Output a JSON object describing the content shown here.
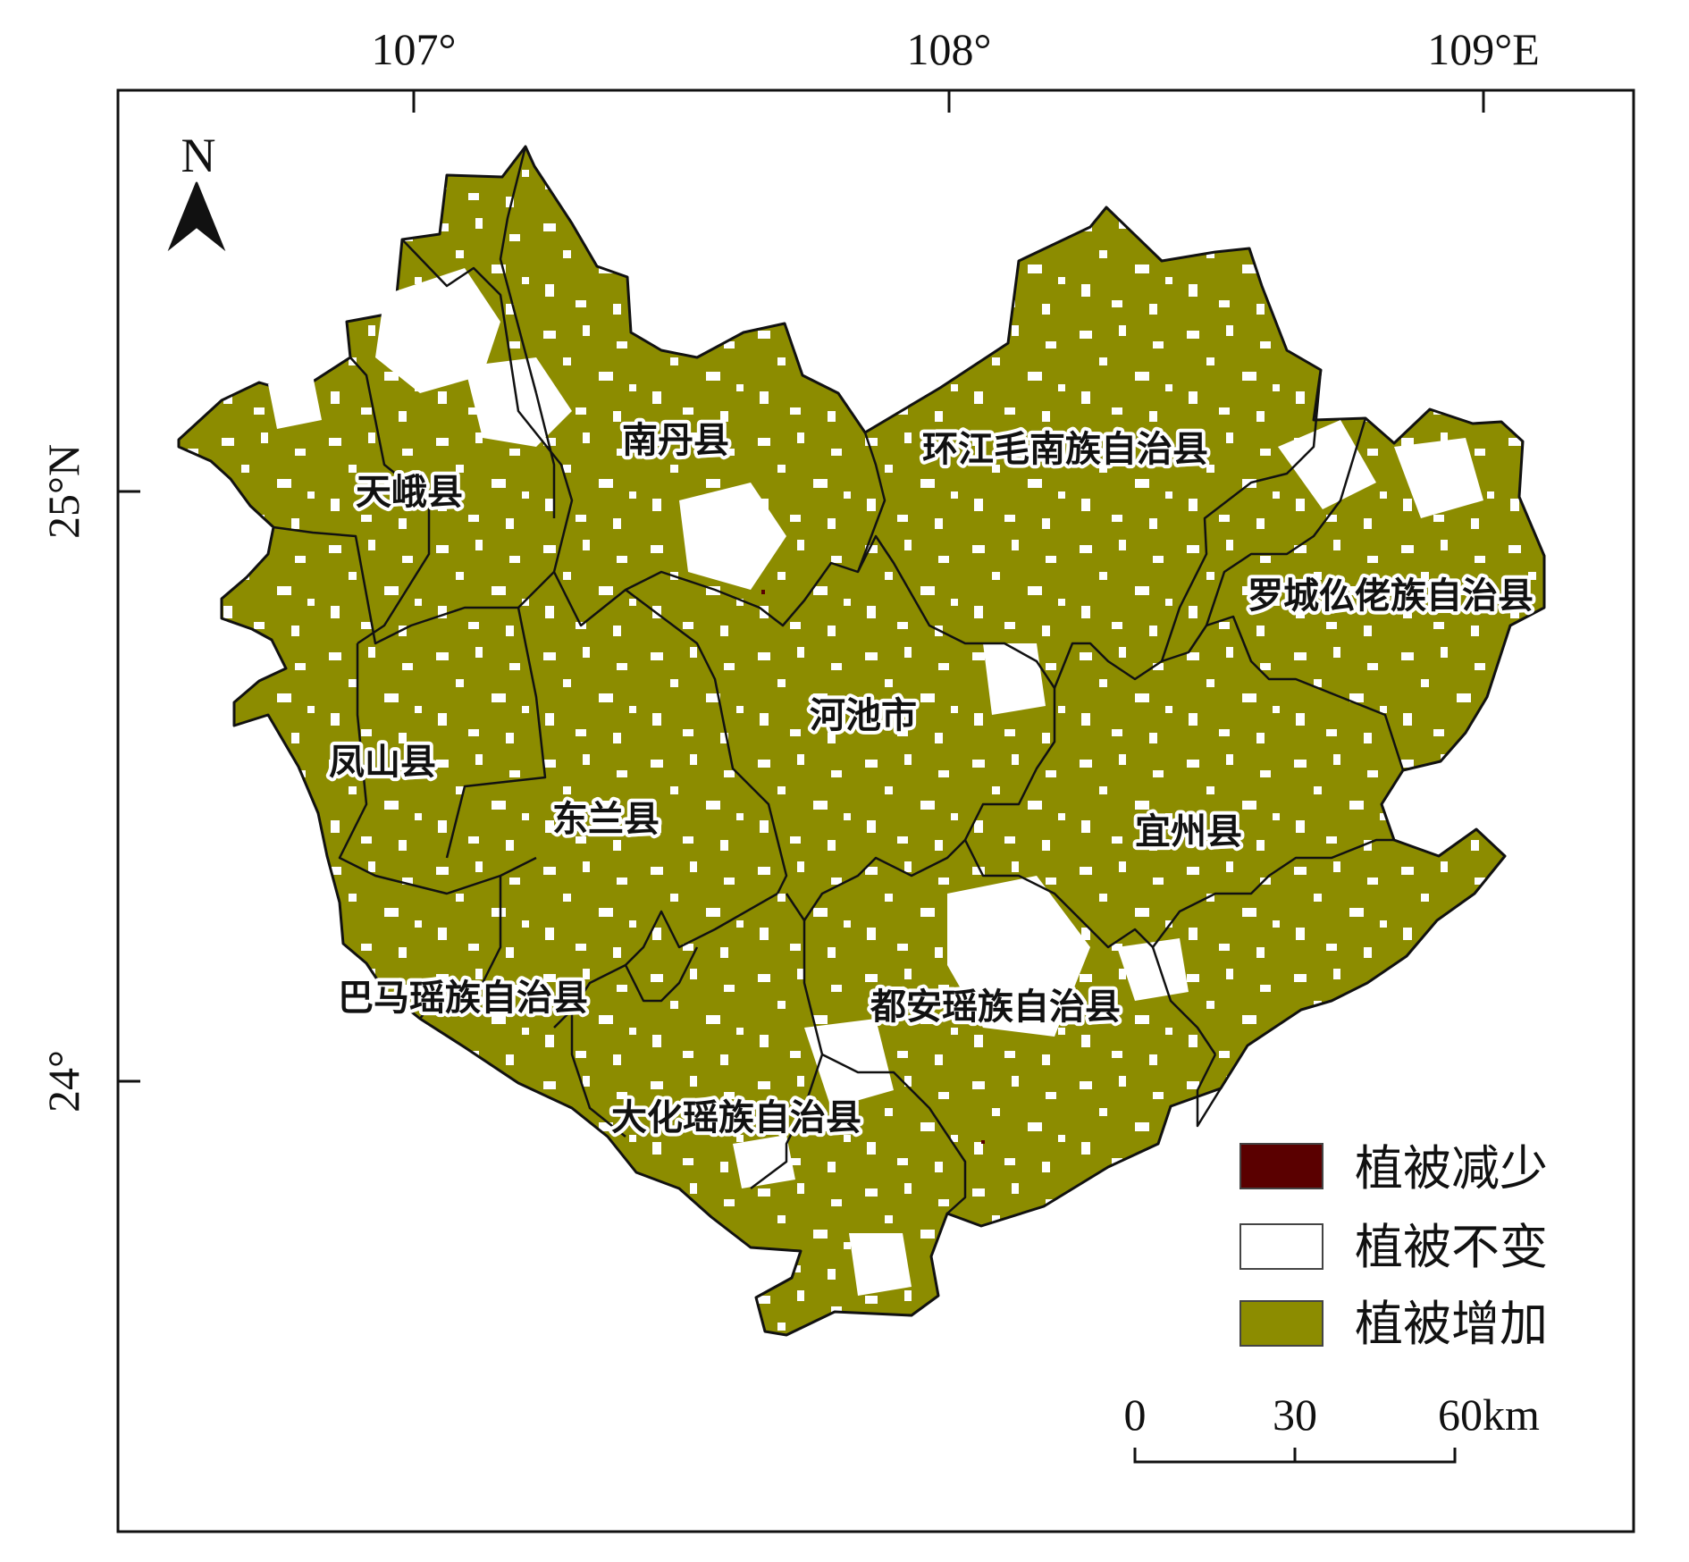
{
  "map": {
    "longitude_ticks": [
      "107°",
      "108°",
      "109°E"
    ],
    "latitude_ticks": [
      "25°N",
      "24°"
    ],
    "north_arrow_label": "N",
    "counties": [
      {
        "id": "tiane",
        "name": "天峨县"
      },
      {
        "id": "nandan",
        "name": "南丹县"
      },
      {
        "id": "huanjiang",
        "name": "环江毛南族自治县"
      },
      {
        "id": "luocheng",
        "name": "罗城仫佬族自治县"
      },
      {
        "id": "hechi",
        "name": "河池市"
      },
      {
        "id": "fengshan",
        "name": "凤山县"
      },
      {
        "id": "donglan",
        "name": "东兰县"
      },
      {
        "id": "yizhou",
        "name": "宜州县"
      },
      {
        "id": "bama",
        "name": "巴马瑶族自治县"
      },
      {
        "id": "duan",
        "name": "都安瑶族自治县"
      },
      {
        "id": "dahua",
        "name": "大化瑶族自治县"
      }
    ],
    "legend": [
      {
        "label": "植被减少",
        "color": "#5a0000"
      },
      {
        "label": "植被不变",
        "color": "#ffffff"
      },
      {
        "label": "植被增加",
        "color": "#8c8c00"
      }
    ],
    "scale_bar": {
      "labels": [
        "0",
        "30",
        "60km"
      ]
    },
    "colors": {
      "increase": "#8c8c00",
      "unchanged": "#ffffff",
      "decrease": "#5a0000",
      "boundary": "#111111"
    }
  }
}
